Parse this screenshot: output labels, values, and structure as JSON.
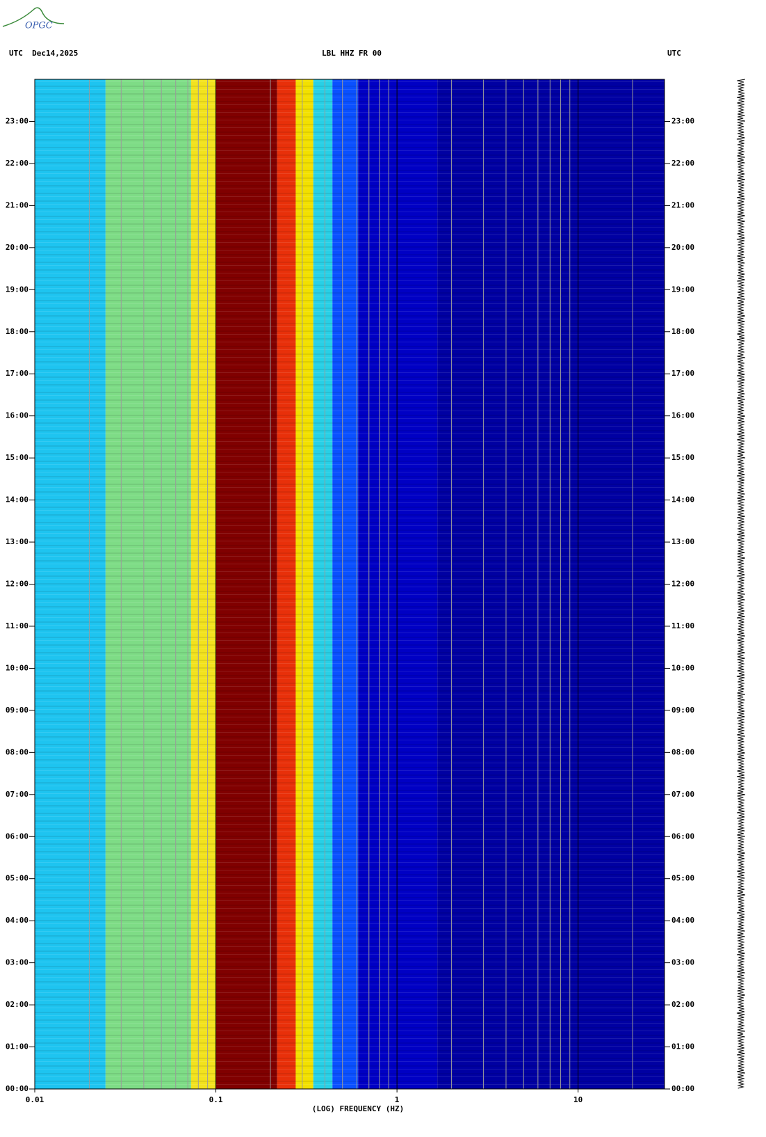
{
  "logo": "OPGC",
  "chart_data": {
    "type": "spectrogram",
    "title_left": "UTC  Dec14,2025",
    "title": "LBL HHZ FR 00",
    "title_right": "UTC",
    "x_label": "(LOG) FREQUENCY (HZ)",
    "log_x": true,
    "xlim": [
      0.01,
      30
    ],
    "xticks": [
      0.01,
      0.1,
      1,
      10
    ],
    "minor_xticks": [
      0.02,
      0.03,
      0.04,
      0.05,
      0.06,
      0.07,
      0.08,
      0.09,
      0.2,
      0.3,
      0.4,
      0.5,
      0.6,
      0.7,
      0.8,
      0.9,
      2,
      3,
      4,
      5,
      6,
      7,
      8,
      9,
      20
    ],
    "ylim": [
      0,
      24
    ],
    "yticks": [
      {
        "value": 0,
        "label": "00:00"
      },
      {
        "value": 1,
        "label": "01:00"
      },
      {
        "value": 2,
        "label": "02:00"
      },
      {
        "value": 3,
        "label": "03:00"
      },
      {
        "value": 4,
        "label": "04:00"
      },
      {
        "value": 5,
        "label": "05:00"
      },
      {
        "value": 6,
        "label": "06:00"
      },
      {
        "value": 7,
        "label": "07:00"
      },
      {
        "value": 8,
        "label": "08:00"
      },
      {
        "value": 9,
        "label": "09:00"
      },
      {
        "value": 10,
        "label": "10:00"
      },
      {
        "value": 11,
        "label": "11:00"
      },
      {
        "value": 12,
        "label": "12:00"
      },
      {
        "value": 13,
        "label": "13:00"
      },
      {
        "value": 14,
        "label": "14:00"
      },
      {
        "value": 15,
        "label": "15:00"
      },
      {
        "value": 16,
        "label": "16:00"
      },
      {
        "value": 17,
        "label": "17:00"
      },
      {
        "value": 18,
        "label": "18:00"
      },
      {
        "value": 19,
        "label": "19:00"
      },
      {
        "value": 20,
        "label": "20:00"
      },
      {
        "value": 21,
        "label": "21:00"
      },
      {
        "value": 22,
        "label": "22:00"
      },
      {
        "value": 23,
        "label": "23:00"
      }
    ],
    "bands": [
      {
        "from": 0.01,
        "to": 0.0246,
        "color": "#1ec4f0"
      },
      {
        "from": 0.0246,
        "to": 0.073,
        "color": "#7edc86"
      },
      {
        "from": 0.073,
        "to": 0.1,
        "color": "#f2e21e"
      },
      {
        "from": 0.1,
        "to": 0.218,
        "color": "#800000"
      },
      {
        "from": 0.218,
        "to": 0.276,
        "color": "#e8300a"
      },
      {
        "from": 0.276,
        "to": 0.345,
        "color": "#f2e000"
      },
      {
        "from": 0.345,
        "to": 0.44,
        "color": "#28d0e6"
      },
      {
        "from": 0.44,
        "to": 0.61,
        "color": "#0a50ff"
      },
      {
        "from": 0.61,
        "to": 1.67,
        "color": "#0000c4"
      },
      {
        "from": 1.67,
        "to": 30,
        "color": "#0000a2"
      }
    ]
  }
}
